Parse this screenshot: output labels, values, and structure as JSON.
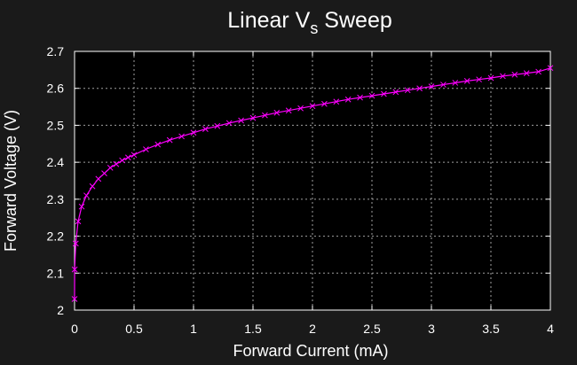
{
  "chart_data": {
    "type": "line",
    "title_main": "Linear V",
    "title_sub": "s",
    "title_tail": " Sweep",
    "xlabel": "Forward Current (mA)",
    "ylabel": "Forward Voltage (V)",
    "xlim": [
      0,
      4
    ],
    "ylim": [
      2.0,
      2.7
    ],
    "x_ticks": [
      "0",
      "0.5",
      "1",
      "1.5",
      "2",
      "2.5",
      "3",
      "3.5",
      "4"
    ],
    "y_ticks": [
      "2",
      "2.1",
      "2.2",
      "2.3",
      "2.4",
      "2.5",
      "2.6",
      "2.7"
    ],
    "grid": true,
    "marker": "x",
    "colors": {
      "series": "#ff00ff",
      "background": "#1a1a1a",
      "plot_area": "#000000",
      "text": "#ffffff",
      "grid": "#a0a0a0"
    },
    "series": [
      {
        "x": [
          0.0,
          0.001,
          0.01,
          0.03,
          0.06,
          0.1,
          0.15,
          0.2,
          0.25,
          0.3,
          0.35,
          0.4,
          0.45,
          0.5,
          0.6,
          0.7,
          0.8,
          0.9,
          1.0,
          1.1,
          1.2,
          1.3,
          1.4,
          1.5,
          1.6,
          1.7,
          1.8,
          1.9,
          2.0,
          2.1,
          2.2,
          2.3,
          2.4,
          2.5,
          2.6,
          2.7,
          2.8,
          2.9,
          3.0,
          3.1,
          3.2,
          3.3,
          3.4,
          3.5,
          3.6,
          3.7,
          3.8,
          3.9,
          4.0
        ],
        "y": [
          2.03,
          2.11,
          2.18,
          2.24,
          2.28,
          2.31,
          2.335,
          2.355,
          2.37,
          2.385,
          2.395,
          2.405,
          2.413,
          2.42,
          2.435,
          2.448,
          2.46,
          2.47,
          2.48,
          2.49,
          2.498,
          2.506,
          2.513,
          2.52,
          2.527,
          2.534,
          2.54,
          2.546,
          2.552,
          2.558,
          2.564,
          2.57,
          2.575,
          2.58,
          2.585,
          2.59,
          2.595,
          2.6,
          2.605,
          2.61,
          2.615,
          2.62,
          2.624,
          2.628,
          2.633,
          2.637,
          2.641,
          2.645,
          2.655
        ]
      }
    ]
  }
}
